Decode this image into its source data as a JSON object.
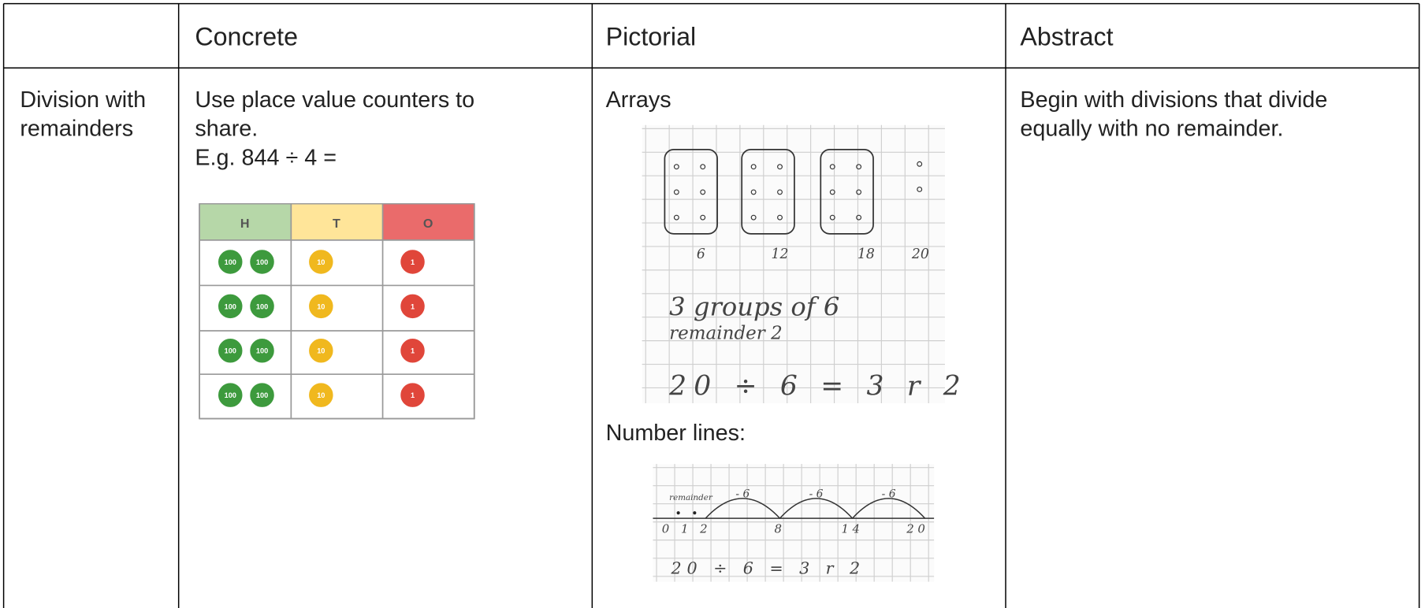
{
  "header": {
    "columns": [
      "Concrete",
      "Pictorial",
      "Abstract"
    ]
  },
  "row": {
    "label_lines": [
      "Division with",
      "remainders"
    ],
    "concrete": {
      "lines": [
        "Use place value counters to",
        "share.",
        "E.g. 844 ÷ 4 ="
      ],
      "place_value_chart": {
        "headers": [
          "H",
          "T",
          "O"
        ],
        "counters": [
          "100",
          "10",
          "1"
        ]
      }
    },
    "pictorial": {
      "arrays_heading": "Arrays",
      "arrays_image": {
        "totals": [
          "6",
          "12",
          "18",
          "20"
        ],
        "lines": [
          "3 groups of 6",
          "remainder 2"
        ],
        "equation": "20 ÷ 6 = 3 r 2"
      },
      "number_lines_heading": "Number lines:",
      "number_line_image": {
        "remainder_label": "remainder",
        "jump_label": "- 6",
        "points": [
          "0",
          "1",
          "2",
          "8",
          "14",
          "20"
        ],
        "equation": "20 ÷ 6 = 3 r 2"
      }
    },
    "abstract": {
      "lines": [
        "Begin with divisions that divide",
        "equally with no remainder."
      ]
    }
  }
}
